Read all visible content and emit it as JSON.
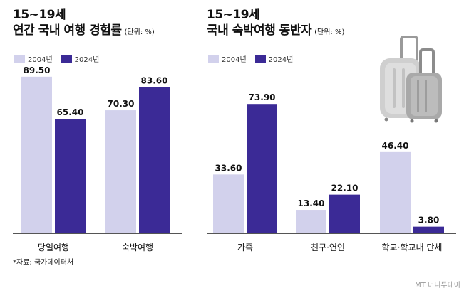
{
  "colors": {
    "y2004": "#d2d1ec",
    "y2024": "#3b2a96",
    "axis": "#555555"
  },
  "chart_data": [
    {
      "type": "bar",
      "title": "15~19세",
      "subtitle": "연간 국내 여행 경험률",
      "unit": "(단위: %)",
      "categories": [
        "당일여행",
        "숙박여행"
      ],
      "series": [
        {
          "name": "2004년",
          "values": [
            89.5,
            70.3
          ],
          "labels": [
            "89.50",
            "70.30"
          ]
        },
        {
          "name": "2024년",
          "values": [
            65.4,
            83.6
          ],
          "labels": [
            "65.40",
            "83.60"
          ]
        }
      ],
      "ylim": [
        0,
        100
      ],
      "grid": false,
      "legend": "top-left"
    },
    {
      "type": "bar",
      "title": "15~19세",
      "subtitle": "국내 숙박여행 동반자",
      "unit": "(단위: %)",
      "categories": [
        "가족",
        "친구·연인",
        "학교·학교내 단체"
      ],
      "series": [
        {
          "name": "2004년",
          "values": [
            33.6,
            13.4,
            46.4
          ],
          "labels": [
            "33.60",
            "13.40",
            "46.40"
          ]
        },
        {
          "name": "2024년",
          "values": [
            73.9,
            22.1,
            3.8
          ],
          "labels": [
            "73.90",
            "22.10",
            "3.80"
          ]
        }
      ],
      "ylim": [
        0,
        100
      ],
      "grid": false,
      "legend": "top-left"
    }
  ],
  "footer": {
    "source": "*자료: 국가데이터처",
    "credit": "MT 머니투데이"
  },
  "decor": {
    "illustration": "suitcase-icon"
  }
}
